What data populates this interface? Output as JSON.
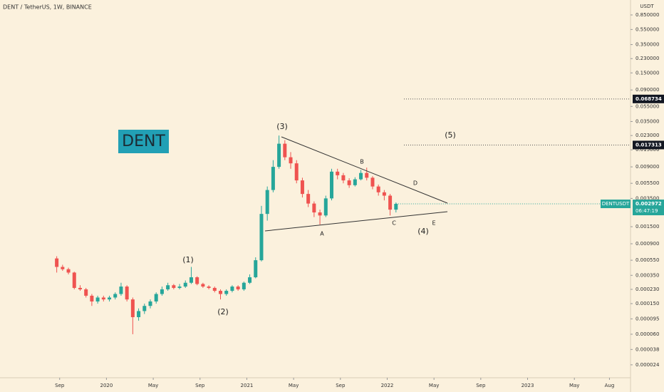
{
  "chart_data": {
    "type": "candlestick",
    "title": "DENT / TetherUS, 1W, BINANCE",
    "currency": "USDT",
    "symbol": "DENTUSDT",
    "countdown": "06:47:19",
    "log_y": true,
    "up_color": "#26a69a",
    "down_color": "#ef5350",
    "xlim": [
      -5.1,
      48.8
    ],
    "xticks": [
      {
        "value": 0,
        "label": "Sep"
      },
      {
        "value": 4,
        "label": "2020"
      },
      {
        "value": 8,
        "label": "May"
      },
      {
        "value": 12,
        "label": "Sep"
      },
      {
        "value": 16,
        "label": "2021"
      },
      {
        "value": 20,
        "label": "May"
      },
      {
        "value": 24,
        "label": "Sep"
      },
      {
        "value": 28,
        "label": "2022"
      },
      {
        "value": 32,
        "label": "May"
      },
      {
        "value": 36,
        "label": "Sep"
      },
      {
        "value": 40,
        "label": "2023"
      },
      {
        "value": 44,
        "label": "May"
      },
      {
        "value": 47,
        "label": "Aug"
      }
    ],
    "ylim": [
      1.63e-05,
      1.33
    ],
    "yticks": [
      {
        "value": 0.85,
        "label": "0.850000"
      },
      {
        "value": 0.55,
        "label": "0.550000"
      },
      {
        "value": 0.35,
        "label": "0.350000"
      },
      {
        "value": 0.23,
        "label": "0.230000"
      },
      {
        "value": 0.15,
        "label": "0.150000"
      },
      {
        "value": 0.09,
        "label": "0.090000"
      },
      {
        "value": 0.055,
        "label": "0.055000"
      },
      {
        "value": 0.035,
        "label": "0.035000"
      },
      {
        "value": 0.023,
        "label": "0.023000"
      },
      {
        "value": 0.015,
        "label": "0.015000"
      },
      {
        "value": 0.009,
        "label": "0.009000"
      },
      {
        "value": 0.0055,
        "label": "0.005500"
      },
      {
        "value": 0.0035,
        "label": "0.003500"
      },
      {
        "value": 0.0015,
        "label": "0.001500"
      },
      {
        "value": 0.0009,
        "label": "0.000900"
      },
      {
        "value": 0.00055,
        "label": "0.000550"
      },
      {
        "value": 0.00035,
        "label": "0.000350"
      },
      {
        "value": 0.00023,
        "label": "0.000230"
      },
      {
        "value": 0.00015,
        "label": "0.000150"
      },
      {
        "value": 9.5e-05,
        "label": "0.000095"
      },
      {
        "value": 6e-05,
        "label": "0.000060"
      },
      {
        "value": 3.8e-05,
        "label": "0.000038"
      },
      {
        "value": 2.4e-05,
        "label": "0.000024"
      }
    ],
    "price_levels": [
      0.068734,
      0.017313
    ],
    "x": [
      -0.25,
      0.25,
      0.75,
      1.25,
      1.75,
      2.25,
      2.75,
      3.25,
      3.75,
      4.25,
      4.75,
      5.25,
      5.75,
      6.25,
      6.75,
      7.25,
      7.75,
      8.25,
      8.75,
      9.25,
      9.75,
      10.25,
      10.75,
      11.25,
      11.75,
      12.25,
      12.75,
      13.25,
      13.75,
      14.25,
      14.75,
      15.25,
      15.75,
      16.25,
      16.75,
      17.25,
      17.75,
      18.25,
      18.75,
      19.25,
      19.75,
      20.25,
      20.75,
      21.25,
      21.75,
      22.25,
      22.75,
      23.25,
      23.75,
      24.25,
      24.75,
      25.25,
      25.75,
      26.25,
      26.75,
      27.25,
      27.75,
      28.25,
      28.75
    ],
    "open": [
      0.00058,
      0.00045,
      0.00042,
      0.00038,
      0.00024,
      0.00023,
      0.00019,
      0.00016,
      0.00018,
      0.00017,
      0.00018,
      0.0002,
      0.00025,
      0.00017,
      0.0001,
      0.00012,
      0.00014,
      0.00016,
      0.0002,
      0.00023,
      0.00026,
      0.00024,
      0.00025,
      0.00028,
      0.00033,
      0.00027,
      0.00025,
      0.00024,
      0.00022,
      0.0002,
      0.00022,
      0.00025,
      0.00023,
      0.00028,
      0.00033,
      0.00055,
      0.0022,
      0.0045,
      0.009,
      0.018,
      0.012,
      0.01,
      0.006,
      0.004,
      0.003,
      0.0023,
      0.0021,
      0.0035,
      0.0078,
      0.007,
      0.006,
      0.0052,
      0.0062,
      0.0075,
      0.0065,
      0.005,
      0.0042,
      0.0038,
      0.0025
    ],
    "high": [
      0.00062,
      0.00048,
      0.00044,
      0.00039,
      0.00026,
      0.00024,
      0.0002,
      0.00019,
      0.00019,
      0.00019,
      0.00021,
      0.00028,
      0.00026,
      0.00018,
      0.00013,
      0.00015,
      0.00017,
      0.00021,
      0.00025,
      0.00028,
      0.00027,
      0.00027,
      0.0003,
      0.00045,
      0.00034,
      0.00028,
      0.00026,
      0.00025,
      0.00023,
      0.00023,
      0.00026,
      0.00026,
      0.00029,
      0.00036,
      0.0006,
      0.0028,
      0.005,
      0.011,
      0.023,
      0.02,
      0.014,
      0.011,
      0.0065,
      0.0045,
      0.0032,
      0.0025,
      0.0038,
      0.0085,
      0.0085,
      0.0075,
      0.0064,
      0.0066,
      0.0082,
      0.0088,
      0.0068,
      0.0053,
      0.0045,
      0.004,
      0.0031
    ],
    "low": [
      0.00038,
      0.0004,
      0.00036,
      0.00023,
      0.00022,
      0.00018,
      0.00014,
      0.00015,
      0.00016,
      0.00016,
      0.00017,
      0.00019,
      0.00016,
      6e-05,
      9e-05,
      0.00011,
      0.00013,
      0.00015,
      0.00019,
      0.00022,
      0.00023,
      0.00023,
      0.00024,
      0.00027,
      0.00026,
      0.00024,
      0.00023,
      0.00021,
      0.00017,
      0.00019,
      0.00021,
      0.00022,
      0.00022,
      0.00027,
      0.00032,
      0.00053,
      0.0018,
      0.0042,
      0.0085,
      0.011,
      0.0085,
      0.0055,
      0.0036,
      0.0027,
      0.002,
      0.0016,
      0.002,
      0.0033,
      0.0062,
      0.0055,
      0.0048,
      0.005,
      0.006,
      0.006,
      0.0046,
      0.0038,
      0.0033,
      0.0021,
      0.0023
    ],
    "close": [
      0.00045,
      0.00042,
      0.00038,
      0.00024,
      0.00023,
      0.00019,
      0.00016,
      0.00018,
      0.00017,
      0.00018,
      0.0002,
      0.00025,
      0.00017,
      0.0001,
      0.00012,
      0.00014,
      0.00016,
      0.0002,
      0.00023,
      0.00026,
      0.00024,
      0.00025,
      0.00028,
      0.00033,
      0.00027,
      0.00025,
      0.00024,
      0.00022,
      0.0002,
      0.00022,
      0.00025,
      0.00023,
      0.00028,
      0.00033,
      0.00055,
      0.0022,
      0.0045,
      0.009,
      0.018,
      0.012,
      0.01,
      0.006,
      0.004,
      0.003,
      0.0023,
      0.0021,
      0.0035,
      0.0078,
      0.007,
      0.006,
      0.0052,
      0.0062,
      0.0075,
      0.0065,
      0.005,
      0.0042,
      0.0038,
      0.0025,
      0.002972
    ],
    "annotations": [
      "DENT",
      "(1)",
      "(2)",
      "(3)",
      "(4)",
      "(5)",
      "A",
      "B",
      "C",
      "D",
      "E"
    ]
  }
}
